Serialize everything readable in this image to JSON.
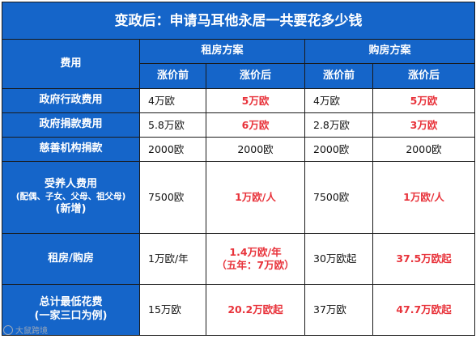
{
  "title": "变政后：申请马耳他永居一共要花多少钱",
  "header": {
    "fee_label": "费用",
    "rent_plan": "租房方案",
    "buy_plan": "购房方案",
    "before": "涨价前",
    "after": "涨价后"
  },
  "rows": [
    {
      "label": "政府行政费用",
      "rent_before": "4万欧",
      "rent_after": "5万欧",
      "buy_before": "4万欧",
      "buy_after": "5万欧"
    },
    {
      "label": "政府捐款费用",
      "rent_before": "5.8万欧",
      "rent_after": "6万欧",
      "buy_before": "2.8万欧",
      "buy_after": "3万欧"
    },
    {
      "label": "慈善机构捐款",
      "rent_before": "2000欧",
      "rent_after": "2000欧",
      "buy_before": "2000欧",
      "buy_after": "2000欧"
    },
    {
      "label": "受养人费用",
      "label_sub": "(配偶、子女、父母、祖父母)",
      "label_sub2": "(新增)",
      "rent_before": "7500欧",
      "rent_after": "1万欧/人",
      "buy_before": "7500欧",
      "buy_after": "1万欧/人"
    },
    {
      "label": "租房/购房",
      "rent_before": "1万欧/年",
      "rent_after": "1.4万欧/年",
      "rent_after2": "（五年：7万欧）",
      "buy_before": "30万欧起",
      "buy_after": "37.5万欧起"
    },
    {
      "label": "总计最低花费",
      "label_sub": "(一家三口为例)",
      "rent_before": "15万欧",
      "rent_after": "20.2万欧起",
      "buy_before": "37万欧",
      "buy_after": "47.7万欧起"
    }
  ],
  "watermark": "大鼠跨境"
}
